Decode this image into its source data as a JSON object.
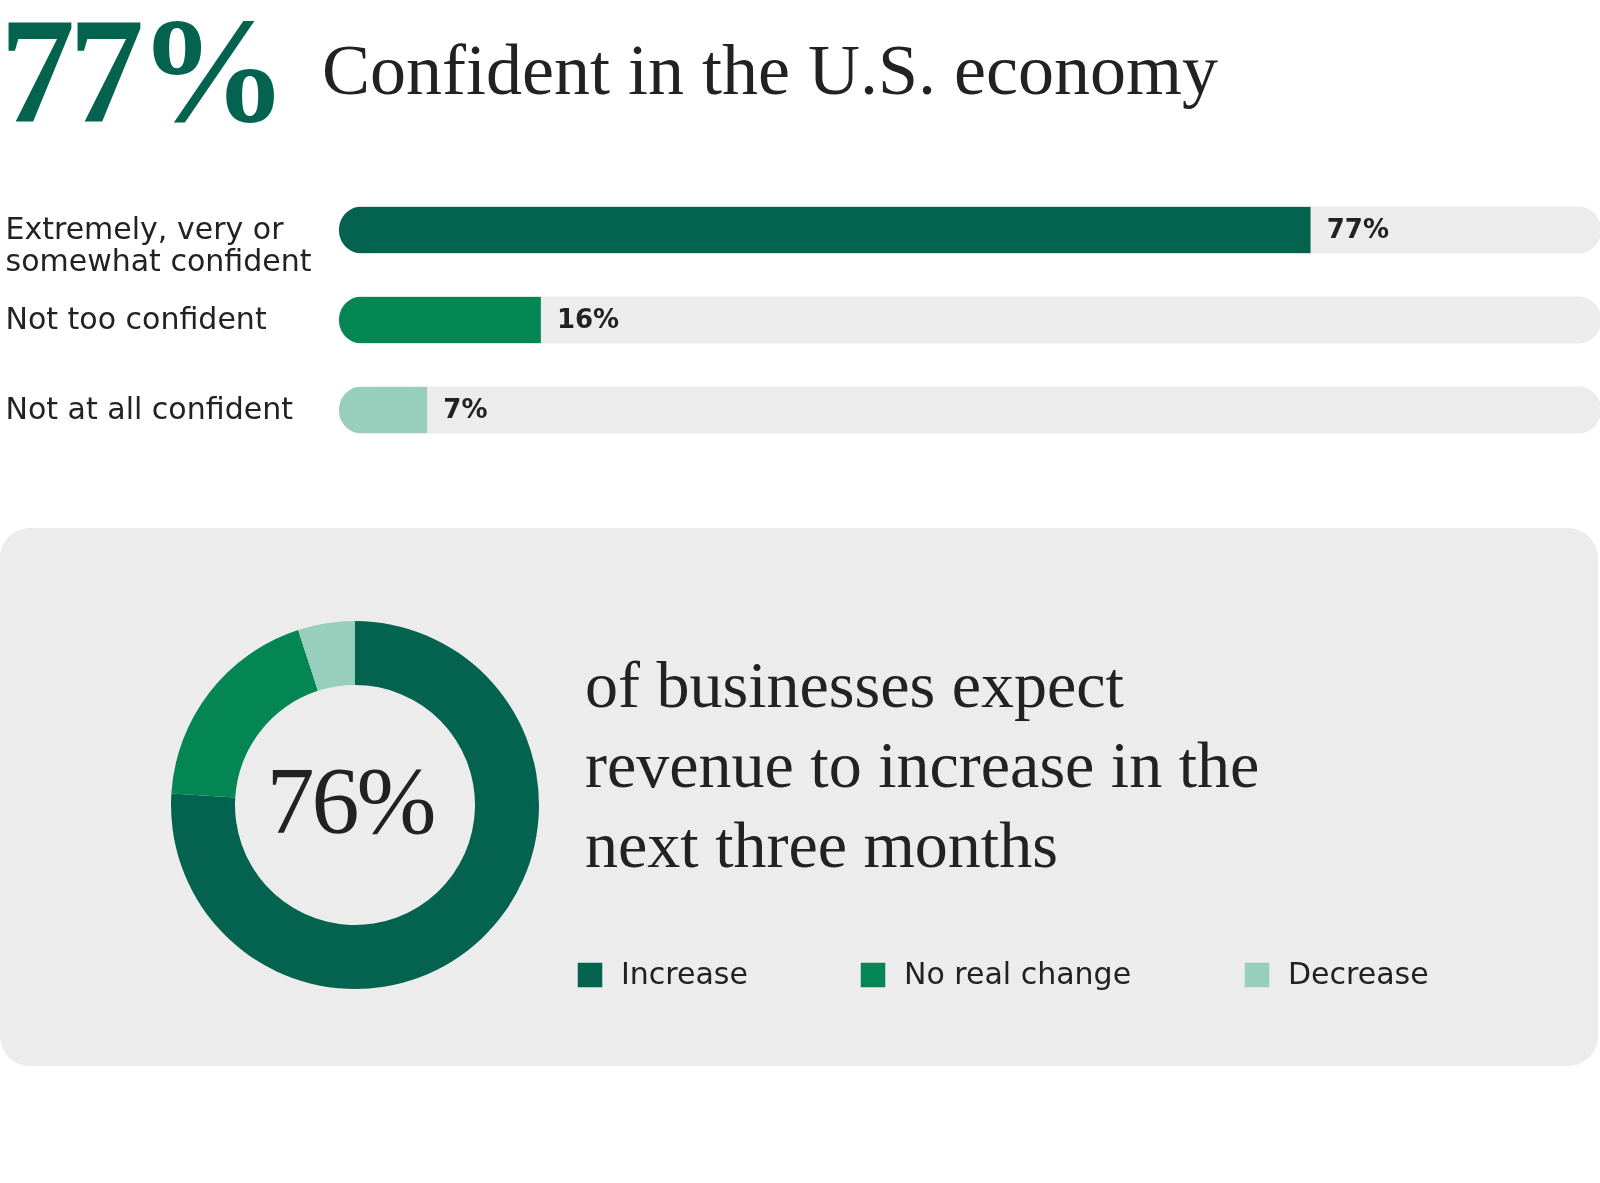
{
  "chart_data": [
    {
      "type": "bar",
      "orientation": "horizontal",
      "title": "Confident in the U.S. economy",
      "annotations": [
        "77%"
      ],
      "categories": [
        "Extremely, very or somewhat confident",
        "Not too confident",
        "Not at all confident"
      ],
      "values": [
        77,
        16,
        7
      ],
      "colors": [
        "#03634f",
        "#038654",
        "#98cfbc"
      ],
      "value_labels": [
        "77%",
        "16%",
        "7%"
      ],
      "xlim": [
        0,
        100
      ],
      "tick_labels": "y",
      "legend": false
    },
    {
      "type": "donut",
      "title": "of businesses expect revenue to increase in the next three months",
      "annotations": [
        "76%"
      ],
      "categories": [
        "Increase",
        "No real change",
        "Decrease"
      ],
      "values": [
        76,
        19,
        5
      ],
      "colors": [
        "#03634f",
        "#038654",
        "#98cfbc"
      ],
      "legend": "right"
    }
  ]
}
